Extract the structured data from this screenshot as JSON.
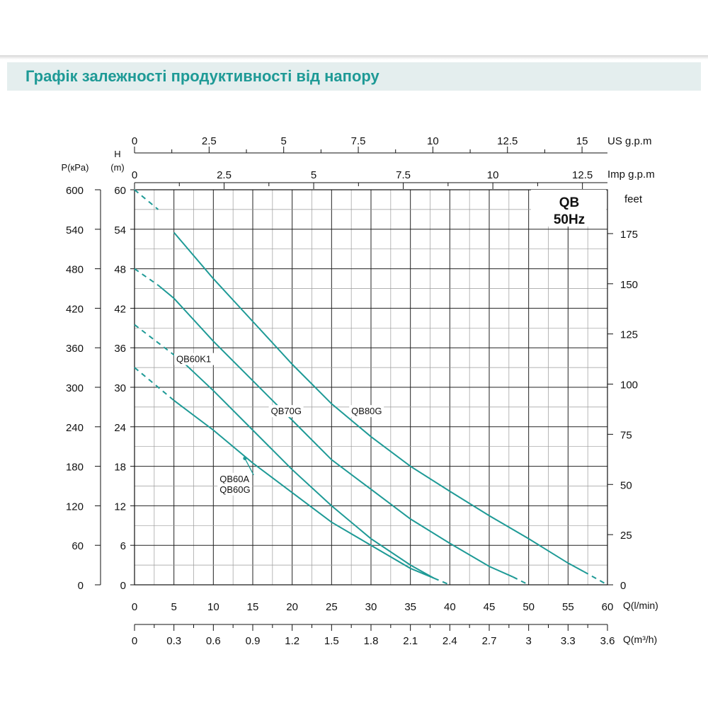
{
  "page": {
    "title": "Графік залежності продуктивності від напору"
  },
  "chart_data": {
    "type": "line",
    "badge": [
      "QB",
      "50Hz"
    ],
    "x": {
      "label": "Q(l/min)",
      "range": [
        0,
        60
      ],
      "ticks": [
        0,
        5,
        10,
        15,
        20,
        25,
        30,
        35,
        40,
        45,
        50,
        55,
        60
      ]
    },
    "x_m3h": {
      "label": "Q(m³/h)",
      "ticks": [
        "0",
        "0.3",
        "0.6",
        "0.9",
        "1.2",
        "1.5",
        "1.8",
        "2.1",
        "2.4",
        "2.7",
        "3",
        "3.3",
        "3.6"
      ]
    },
    "x_us_gpm": {
      "label": "US  g.p.m",
      "ticks": [
        {
          "v": 0,
          "t": "0"
        },
        {
          "v": 2.5,
          "t": "2.5"
        },
        {
          "v": 5,
          "t": "5"
        },
        {
          "v": 7.5,
          "t": "7.5"
        },
        {
          "v": 10,
          "t": "10"
        },
        {
          "v": 12.5,
          "t": "12.5"
        },
        {
          "v": 15,
          "t": "15"
        }
      ]
    },
    "x_imp_gpm": {
      "label": "Imp  g.p.m",
      "ticks": [
        {
          "v": 0,
          "t": "0"
        },
        {
          "v": 2.5,
          "t": "2.5"
        },
        {
          "v": 5,
          "t": "5"
        },
        {
          "v": 7.5,
          "t": "7.5"
        },
        {
          "v": 10,
          "t": "10"
        },
        {
          "v": 12.5,
          "t": "12.5"
        }
      ]
    },
    "y_h": {
      "label_line1": "H",
      "label_line2": "(m)",
      "range": [
        0,
        60
      ],
      "ticks": [
        0,
        6,
        12,
        18,
        24,
        30,
        36,
        42,
        48,
        54,
        60
      ]
    },
    "y_p": {
      "label": "P(кPa)",
      "ticks": [
        "0",
        "60",
        "120",
        "180",
        "240",
        "300",
        "360",
        "420",
        "480",
        "540",
        "600"
      ]
    },
    "y_feet": {
      "label": "feet",
      "ticks": [
        {
          "v": 0,
          "t": "0"
        },
        {
          "v": 25,
          "t": "25"
        },
        {
          "v": 50,
          "t": "50"
        },
        {
          "v": 75,
          "t": "75"
        },
        {
          "v": 100,
          "t": "100"
        },
        {
          "v": 125,
          "t": "125"
        },
        {
          "v": 150,
          "t": "150"
        },
        {
          "v": 175,
          "t": "175"
        }
      ]
    },
    "grid": true,
    "line_color": "#1e9a96",
    "series": [
      {
        "name": "QB80G",
        "dashed": [
          [
            0,
            60
          ],
          [
            3,
            57
          ]
        ],
        "solid": [
          [
            5,
            53.5
          ],
          [
            10,
            46.5
          ],
          [
            15,
            40
          ],
          [
            20,
            33.5
          ],
          [
            25,
            27.5
          ],
          [
            30,
            22.5
          ],
          [
            35,
            18
          ],
          [
            40,
            14.2
          ],
          [
            45,
            10.5
          ],
          [
            50,
            7
          ],
          [
            55,
            3.3
          ],
          [
            57,
            2
          ]
        ],
        "dashed_end": [
          [
            57,
            2
          ],
          [
            60,
            0
          ]
        ],
        "label_at": [
          27.5,
          25.9
        ]
      },
      {
        "name": "QB70G",
        "dashed": [
          [
            0,
            48
          ],
          [
            3,
            45.5
          ]
        ],
        "solid": [
          [
            3,
            45.5
          ],
          [
            5,
            43.5
          ],
          [
            10,
            37
          ],
          [
            15,
            31
          ],
          [
            20,
            25
          ],
          [
            25,
            19
          ],
          [
            30,
            14.5
          ],
          [
            35,
            10
          ],
          [
            40,
            6.3
          ],
          [
            45,
            2.8
          ],
          [
            48,
            1.2
          ]
        ],
        "dashed_end": [
          [
            48,
            1.2
          ],
          [
            50,
            0
          ]
        ],
        "label_at": [
          17.3,
          25.9
        ]
      },
      {
        "name": "QB60K1",
        "dashed": [
          [
            0,
            39.5
          ],
          [
            6,
            34
          ]
        ],
        "solid": [
          [
            6,
            34
          ],
          [
            10,
            29.5
          ],
          [
            15,
            23.5
          ],
          [
            20,
            17.5
          ],
          [
            25,
            12
          ],
          [
            30,
            7
          ],
          [
            35,
            3
          ],
          [
            38,
            1
          ]
        ],
        "dashed_end": [
          [
            38,
            1
          ],
          [
            40,
            0
          ]
        ],
        "label_at": [
          5.3,
          33.8
        ]
      },
      {
        "name": "QB60A",
        "dashed": [
          [
            0,
            33
          ],
          [
            5,
            28
          ]
        ],
        "solid": [
          [
            5,
            28
          ],
          [
            10,
            23.5
          ],
          [
            15,
            18.5
          ],
          [
            20,
            14
          ],
          [
            25,
            9.5
          ],
          [
            30,
            6
          ],
          [
            35,
            2.5
          ],
          [
            38,
            1
          ]
        ],
        "dashed_end": [],
        "label_at": [
          10.8,
          15.6
        ]
      },
      {
        "name": "QB60G",
        "dashed": [],
        "solid": [],
        "dashed_end": [],
        "label_at": [
          10.8,
          14.0
        ]
      }
    ]
  }
}
